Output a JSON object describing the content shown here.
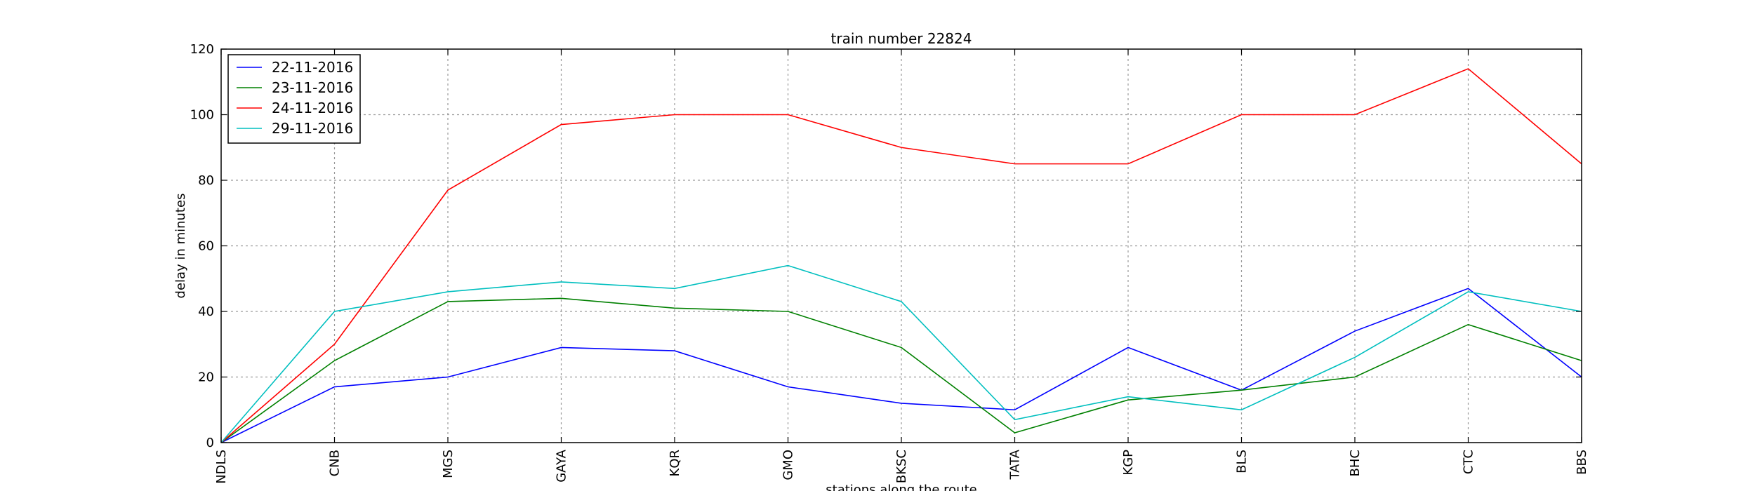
{
  "chart_data": {
    "type": "line",
    "title": "train number 22824",
    "xlabel": "stations along the route",
    "ylabel": "delay in minutes",
    "categories": [
      "NDLS",
      "CNB",
      "MGS",
      "GAYA",
      "KQR",
      "GMO",
      "BKSC",
      "TATA",
      "KGP",
      "BLS",
      "BHC",
      "CTC",
      "BBS"
    ],
    "ylim": [
      0,
      120
    ],
    "yticks": [
      0,
      20,
      40,
      60,
      80,
      100,
      120
    ],
    "grid": true,
    "legend_position": "top-left",
    "series": [
      {
        "name": "22-11-2016",
        "color": "#0000ff",
        "values": [
          0,
          17,
          20,
          29,
          28,
          17,
          12,
          10,
          29,
          16,
          34,
          47,
          20
        ]
      },
      {
        "name": "23-11-2016",
        "color": "#008000",
        "values": [
          0,
          25,
          43,
          44,
          41,
          40,
          29,
          3,
          13,
          16,
          20,
          36,
          25
        ]
      },
      {
        "name": "24-11-2016",
        "color": "#ff0000",
        "values": [
          0,
          30,
          77,
          97,
          100,
          100,
          90,
          85,
          85,
          100,
          100,
          114,
          85
        ]
      },
      {
        "name": "29-11-2016",
        "color": "#00bfbf",
        "values": [
          0,
          40,
          46,
          49,
          47,
          54,
          43,
          7,
          14,
          10,
          26,
          46,
          40
        ]
      }
    ]
  }
}
